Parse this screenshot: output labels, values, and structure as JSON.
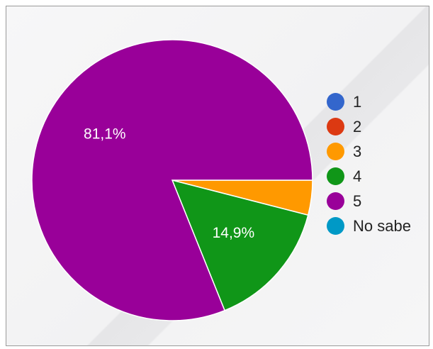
{
  "chart_data": {
    "type": "pie",
    "categories": [
      "1",
      "2",
      "3",
      "4",
      "5",
      "No sabe"
    ],
    "values": [
      0,
      0,
      4.0,
      14.9,
      81.1,
      0
    ],
    "slice_labels": [
      "",
      "",
      "",
      "14,9%",
      "81,1%",
      ""
    ],
    "colors": [
      "#3366cc",
      "#dc3912",
      "#ff9900",
      "#109618",
      "#990099",
      "#0099c6"
    ],
    "legend_position": "right"
  }
}
